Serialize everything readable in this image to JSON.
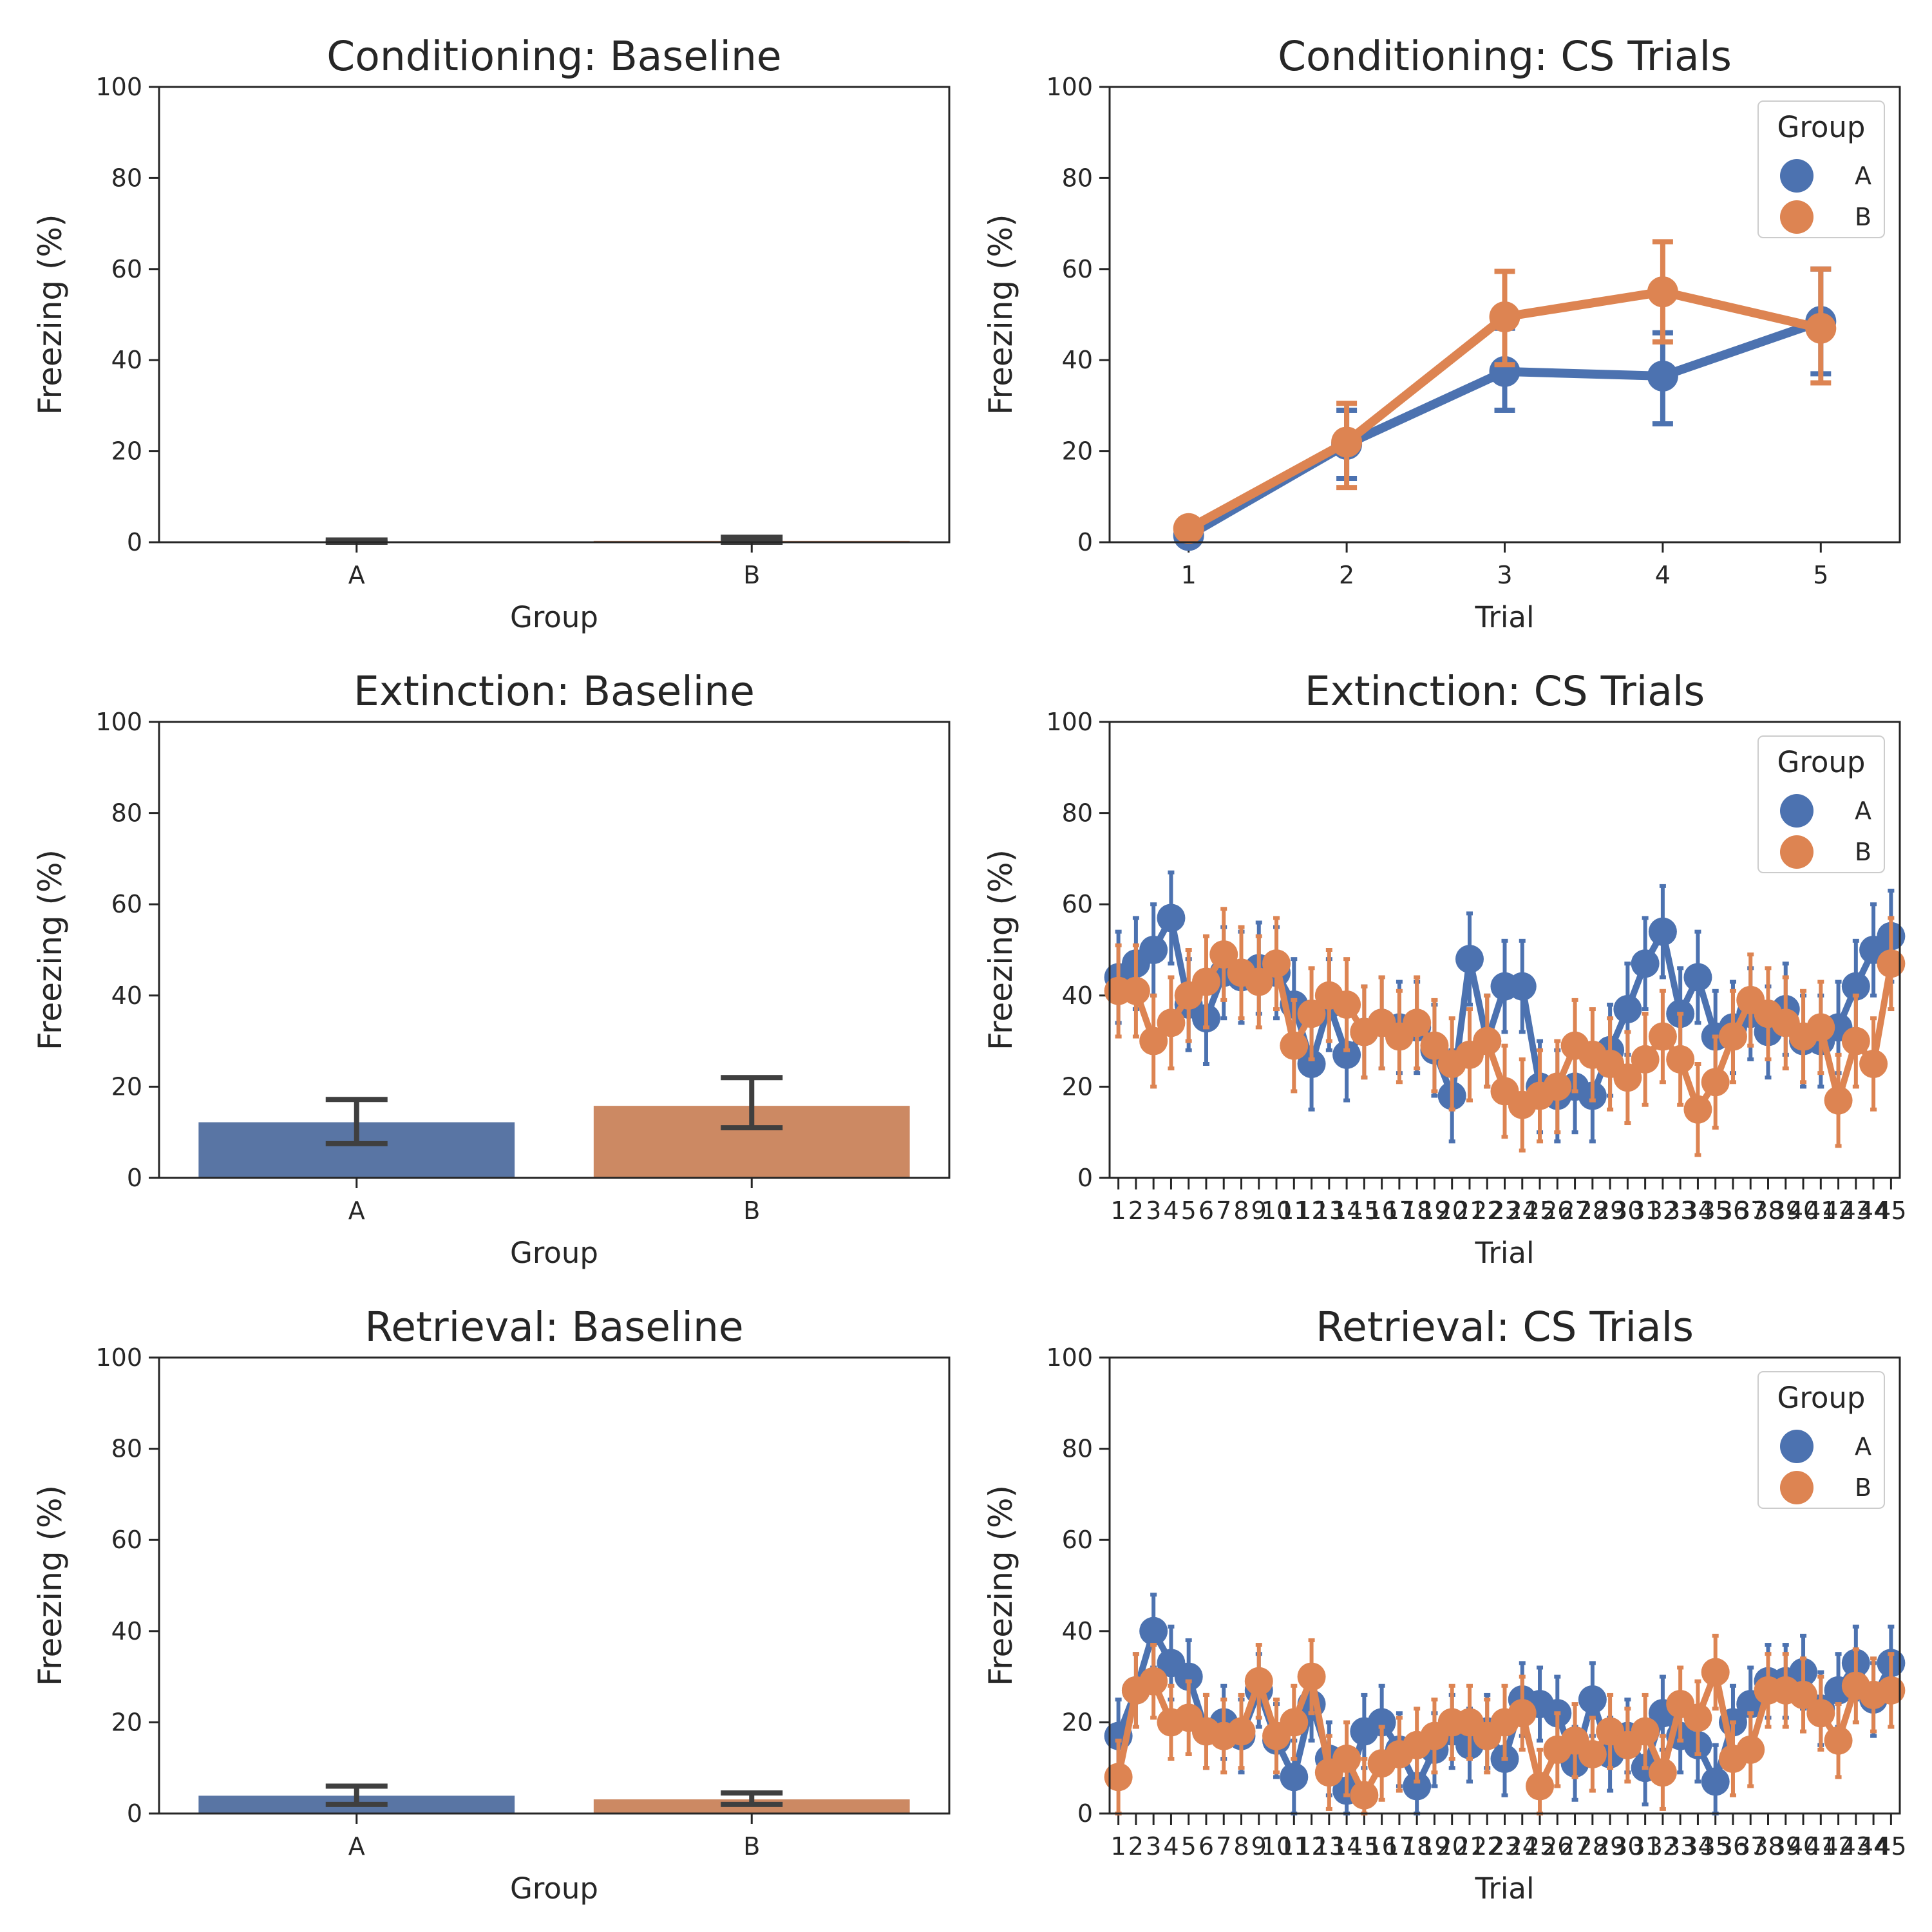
{
  "colors": {
    "A": "#4c72b0",
    "B": "#dd8452",
    "A_bar": "#5975a4",
    "B_bar": "#cc8963",
    "errbar": "#3f3f3f",
    "axis": "#262626"
  },
  "chart_data": [
    {
      "type": "bar",
      "title": "Conditioning: Baseline",
      "xlabel": "Group",
      "ylabel": "Freezing (%)",
      "ylim": [
        0,
        100
      ],
      "yticks": [
        "0",
        "20",
        "40",
        "60",
        "80",
        "100"
      ],
      "categories": [
        "A",
        "B"
      ],
      "values": [
        0.0,
        0.3
      ],
      "err_low": [
        0.0,
        0.0
      ],
      "err_high": [
        0.5,
        1.1
      ]
    },
    {
      "type": "line",
      "title": "Conditioning: CS Trials",
      "xlabel": "Trial",
      "ylabel": "Freezing (%)",
      "ylim": [
        0,
        100
      ],
      "yticks": [
        "0",
        "20",
        "40",
        "60",
        "80",
        "100"
      ],
      "legend": {
        "title": "Group",
        "position": "top-right",
        "entries": [
          "A",
          "B"
        ]
      },
      "x": [
        "1",
        "2",
        "3",
        "4",
        "5"
      ],
      "series": [
        {
          "name": "A",
          "values": [
            1.5,
            21.5,
            37.5,
            36.5,
            48.5
          ],
          "err_low": [
            0.0,
            14.0,
            29.0,
            26.0,
            37.0
          ],
          "err_high": [
            3.0,
            29.0,
            47.0,
            46.0,
            60.0
          ]
        },
        {
          "name": "B",
          "values": [
            3.0,
            22.0,
            49.5,
            55.0,
            47.0
          ],
          "err_low": [
            1.0,
            12.0,
            39.0,
            44.0,
            35.0
          ],
          "err_high": [
            5.0,
            30.5,
            59.5,
            66.0,
            60.0
          ]
        }
      ]
    },
    {
      "type": "bar",
      "title": "Extinction: Baseline",
      "xlabel": "Group",
      "ylabel": "Freezing (%)",
      "ylim": [
        0,
        100
      ],
      "yticks": [
        "0",
        "20",
        "40",
        "60",
        "80",
        "100"
      ],
      "categories": [
        "A",
        "B"
      ],
      "values": [
        12.2,
        15.8
      ],
      "err_low": [
        7.5,
        11.0
      ],
      "err_high": [
        17.2,
        22.0
      ]
    },
    {
      "type": "line",
      "title": "Extinction: CS Trials",
      "xlabel": "Trial",
      "ylabel": "Freezing (%)",
      "ylim": [
        0,
        100
      ],
      "yticks": [
        "0",
        "20",
        "40",
        "60",
        "80",
        "100"
      ],
      "legend": {
        "title": "Group",
        "position": "top-right",
        "entries": [
          "A",
          "B"
        ]
      },
      "x": [
        "1",
        "2",
        "3",
        "4",
        "5",
        "6",
        "7",
        "8",
        "9",
        "10",
        "11",
        "12",
        "13",
        "14",
        "15",
        "16",
        "17",
        "18",
        "19",
        "20",
        "21",
        "22",
        "23",
        "24",
        "25",
        "26",
        "27",
        "28",
        "29",
        "30",
        "31",
        "32",
        "33",
        "34",
        "35",
        "36",
        "37",
        "38",
        "39",
        "40",
        "41",
        "42",
        "43",
        "44",
        "45"
      ],
      "series": [
        {
          "name": "A",
          "values": [
            44,
            47,
            50,
            57,
            38,
            35,
            45,
            44,
            46,
            45,
            38,
            25,
            38,
            27,
            32,
            34,
            33,
            33,
            28,
            18,
            48,
            30,
            42,
            42,
            20,
            18,
            20,
            18,
            28,
            37,
            47,
            54,
            36,
            44,
            31,
            33,
            36,
            32,
            37,
            30,
            30,
            33,
            42,
            50,
            53
          ],
          "err": 10
        },
        {
          "name": "B",
          "values": [
            41,
            41,
            30,
            34,
            40,
            43,
            49,
            45,
            43,
            47,
            29,
            36,
            40,
            38,
            32,
            34,
            31,
            34,
            29,
            25,
            27,
            30,
            19,
            16,
            18,
            20,
            29,
            27,
            25,
            22,
            26,
            31,
            26,
            15,
            21,
            31,
            39,
            36,
            34,
            31,
            33,
            17,
            30,
            25,
            47
          ],
          "err": 10
        }
      ]
    },
    {
      "type": "bar",
      "title": "Retrieval: Baseline",
      "xlabel": "Group",
      "ylabel": "Freezing (%)",
      "ylim": [
        0,
        100
      ],
      "yticks": [
        "0",
        "20",
        "40",
        "60",
        "80",
        "100"
      ],
      "categories": [
        "A",
        "B"
      ],
      "values": [
        3.9,
        3.1
      ],
      "err_low": [
        2.0,
        2.0
      ],
      "err_high": [
        6.0,
        4.5
      ]
    },
    {
      "type": "line",
      "title": "Retrieval: CS Trials",
      "xlabel": "Trial",
      "ylabel": "Freezing (%)",
      "ylim": [
        0,
        100
      ],
      "yticks": [
        "0",
        "20",
        "40",
        "60",
        "80",
        "100"
      ],
      "legend": {
        "title": "Group",
        "position": "top-right",
        "entries": [
          "A",
          "B"
        ]
      },
      "x": [
        "1",
        "2",
        "3",
        "4",
        "5",
        "6",
        "7",
        "8",
        "9",
        "10",
        "11",
        "12",
        "13",
        "14",
        "15",
        "16",
        "17",
        "18",
        "19",
        "20",
        "21",
        "22",
        "23",
        "24",
        "25",
        "26",
        "27",
        "28",
        "29",
        "30",
        "31",
        "32",
        "33",
        "34",
        "35",
        "36",
        "37",
        "38",
        "39",
        "40",
        "41",
        "42",
        "43",
        "44",
        "45"
      ],
      "series": [
        {
          "name": "A",
          "values": [
            17,
            27,
            40,
            33,
            30,
            18,
            20,
            17,
            27,
            16,
            8,
            24,
            12,
            5,
            18,
            20,
            14,
            6,
            14,
            18,
            15,
            18,
            12,
            25,
            24,
            22,
            11,
            25,
            13,
            17,
            10,
            22,
            17,
            15,
            7,
            20,
            24,
            29,
            29,
            31,
            23,
            27,
            33,
            25,
            33
          ],
          "err": 8
        },
        {
          "name": "B",
          "values": [
            8,
            27,
            29,
            20,
            21,
            18,
            17,
            18,
            29,
            17,
            20,
            30,
            9,
            12,
            4,
            11,
            13,
            15,
            17,
            20,
            20,
            17,
            20,
            22,
            6,
            14,
            16,
            13,
            18,
            15,
            18,
            9,
            24,
            21,
            31,
            12,
            14,
            27,
            27,
            26,
            22,
            16,
            28,
            26,
            27
          ],
          "err": 8
        }
      ]
    }
  ]
}
